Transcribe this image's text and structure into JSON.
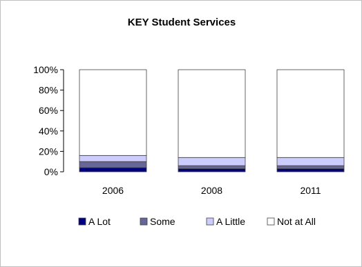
{
  "chart_data": {
    "type": "bar",
    "stacked": true,
    "percent": true,
    "title": "KEY Student Services",
    "xlabel": "",
    "ylabel": "",
    "ylim": [
      0,
      100
    ],
    "yticks": [
      "0%",
      "20%",
      "40%",
      "60%",
      "80%",
      "100%"
    ],
    "categories": [
      "2006",
      "2008",
      "2011"
    ],
    "series": [
      {
        "name": "A Lot",
        "color": "#000080",
        "values": [
          4,
          3,
          3
        ]
      },
      {
        "name": "Some",
        "color": "#666699",
        "values": [
          6,
          3,
          3
        ]
      },
      {
        "name": "A Little",
        "color": "#ccccff",
        "values": [
          6,
          8,
          8
        ]
      },
      {
        "name": "Not at All",
        "color": "#ffffff",
        "values": [
          84,
          86,
          86
        ]
      }
    ],
    "legend_position": "bottom",
    "grid": false
  }
}
